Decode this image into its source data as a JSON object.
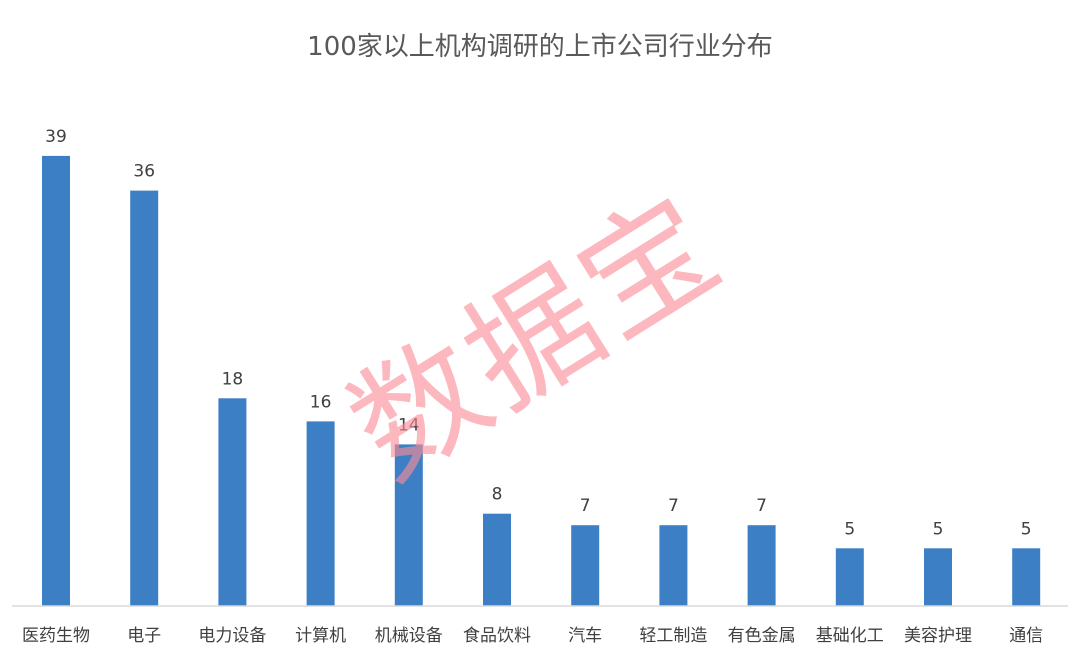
{
  "chart_data": {
    "type": "bar",
    "title": "100家以上机构调研的上市公司行业分布",
    "categories": [
      "医药生物",
      "电子",
      "电力设备",
      "计算机",
      "机械设备",
      "食品饮料",
      "汽车",
      "轻工制造",
      "有色金属",
      "基础化工",
      "美容护理",
      "通信"
    ],
    "values": [
      39,
      36,
      18,
      16,
      14,
      8,
      7,
      7,
      7,
      5,
      5,
      5
    ],
    "xlabel": "",
    "ylabel": "",
    "ylim": [
      0,
      40
    ],
    "grid": false,
    "legend": "none",
    "bar_color": "#3d7fc4"
  },
  "watermark": "数据宝",
  "watermark_color": "#fa8c96"
}
